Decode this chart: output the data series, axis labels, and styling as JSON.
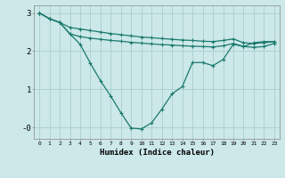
{
  "x": [
    0,
    1,
    2,
    3,
    4,
    5,
    6,
    7,
    8,
    9,
    10,
    11,
    12,
    13,
    14,
    15,
    16,
    17,
    18,
    19,
    20,
    21,
    22,
    23
  ],
  "line1": [
    3.0,
    2.85,
    2.75,
    2.62,
    2.58,
    2.54,
    2.5,
    2.46,
    2.43,
    2.4,
    2.37,
    2.35,
    2.33,
    2.31,
    2.29,
    2.28,
    2.26,
    2.25,
    2.28,
    2.32,
    2.22,
    2.2,
    2.22,
    2.25
  ],
  "line2": [
    3.0,
    2.85,
    2.75,
    2.45,
    2.38,
    2.34,
    2.31,
    2.28,
    2.26,
    2.23,
    2.21,
    2.19,
    2.17,
    2.16,
    2.14,
    2.13,
    2.12,
    2.11,
    2.14,
    2.2,
    2.12,
    2.1,
    2.12,
    2.2
  ],
  "line3": [
    3.0,
    2.85,
    2.75,
    2.45,
    2.18,
    1.68,
    1.22,
    0.82,
    0.38,
    -0.02,
    -0.04,
    0.12,
    0.48,
    0.88,
    1.07,
    1.7,
    1.7,
    1.62,
    1.78,
    2.18,
    2.12,
    2.22,
    2.25,
    2.25
  ],
  "line_color": "#1a7a6e",
  "bg_color": "#cce8e8",
  "grid_color": "#aacece",
  "xlabel": "Humidex (Indice chaleur)",
  "ylim": [
    -0.3,
    3.2
  ],
  "xlim_min": -0.5,
  "xlim_max": 23.5,
  "yticks": [
    0,
    1,
    2,
    3
  ],
  "ytick_labels": [
    "-0",
    "1",
    "2",
    "3"
  ],
  "marker_size": 3,
  "linewidth": 0.9
}
